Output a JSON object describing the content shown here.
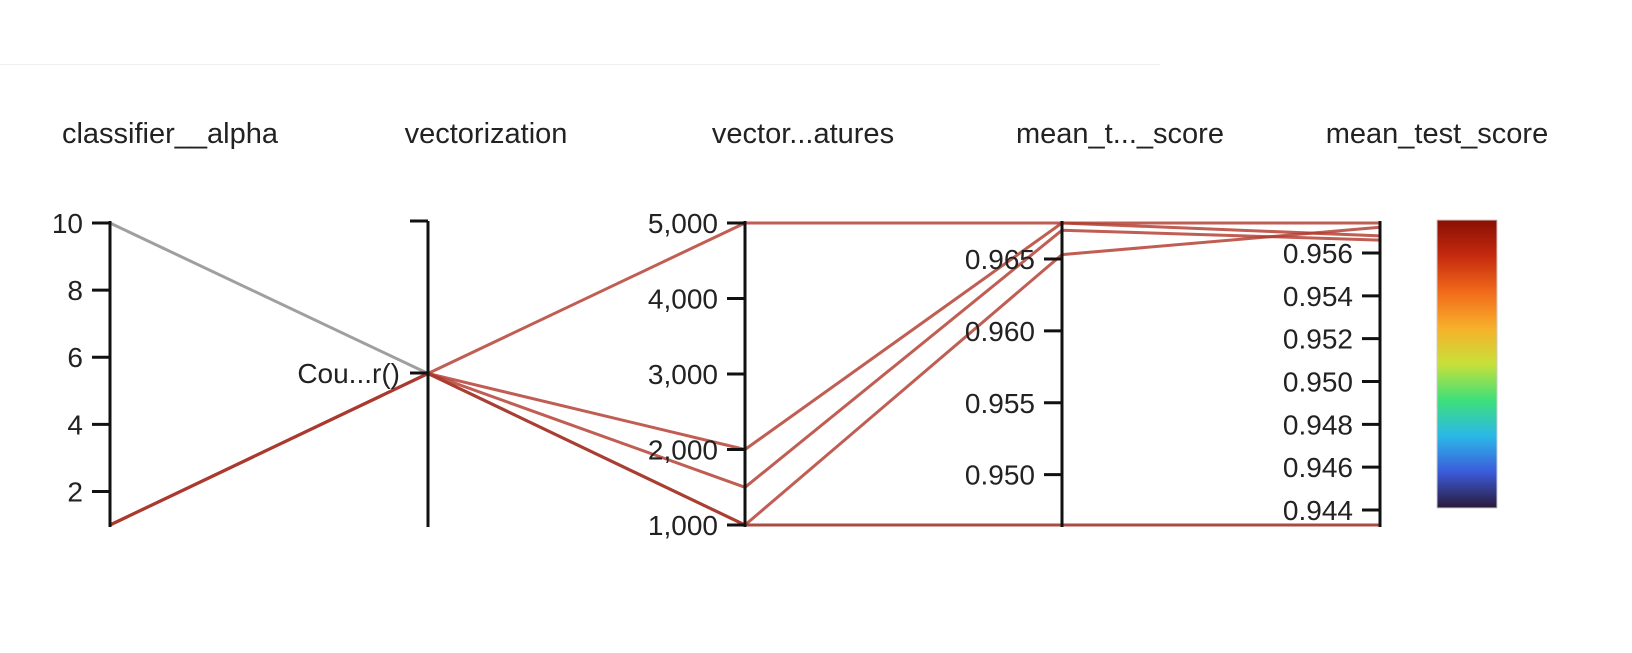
{
  "chart_data": {
    "type": "parallel_coordinates",
    "dimensions": [
      {
        "key": "classifier__alpha",
        "label": "classifier__alpha",
        "range": [
          1,
          10
        ],
        "ticks": [
          10,
          8,
          6,
          4,
          2
        ],
        "tick_labels": [
          "10",
          "8",
          "6",
          "4",
          "2"
        ]
      },
      {
        "key": "vectorization",
        "label": "vectorization",
        "categorical": true,
        "categories": [
          "Cou...r()"
        ]
      },
      {
        "key": "vectorization__max_features",
        "label": "vector...atures",
        "range": [
          1000,
          5000
        ],
        "ticks": [
          5000,
          4000,
          3000,
          2000,
          1000
        ],
        "tick_labels": [
          "5,000",
          "4,000",
          "3,000",
          "2,000",
          "1,000"
        ]
      },
      {
        "key": "mean_train_score",
        "label": "mean_t..._score",
        "range": [
          0.9465,
          0.9675
        ],
        "ticks": [
          0.965,
          0.96,
          0.955,
          0.95
        ],
        "tick_labels": [
          "0.965",
          "0.960",
          "0.955",
          "0.950"
        ]
      },
      {
        "key": "mean_test_score",
        "label": "mean_test_score",
        "range": [
          0.9433,
          0.9574
        ],
        "ticks": [
          0.956,
          0.954,
          0.952,
          0.95,
          0.948,
          0.946,
          0.944
        ],
        "tick_labels": [
          "0.956",
          "0.954",
          "0.952",
          "0.950",
          "0.948",
          "0.946",
          "0.944"
        ]
      }
    ],
    "lines": [
      {
        "values": [
          10,
          "Cou...r()",
          1000,
          0.9465,
          0.9433
        ],
        "color": "#8a8a8a"
      },
      {
        "values": [
          1,
          "Cou...r()",
          5000,
          0.9675,
          0.9574
        ],
        "color": "#b23a2e"
      },
      {
        "values": [
          1,
          "Cou...r()",
          2000,
          0.9675,
          0.9568
        ],
        "color": "#b23a2e"
      },
      {
        "values": [
          1,
          "Cou...r()",
          1500,
          0.967,
          0.9566
        ],
        "color": "#b23a2e"
      },
      {
        "values": [
          1,
          "Cou...r()",
          1000,
          0.9653,
          0.9572
        ],
        "color": "#b23a2e"
      },
      {
        "values": [
          1,
          "Cou...r()",
          1000,
          0.9465,
          0.9433
        ],
        "color": "#a83a30"
      }
    ],
    "colorbar": {
      "range": [
        0.9433,
        0.9574
      ],
      "stops": [
        "#2a1a3a",
        "#3b5bdb",
        "#2bb8e8",
        "#3ee07a",
        "#c8e03a",
        "#f7b02a",
        "#f26a1a",
        "#c52a0e",
        "#8a0f05"
      ]
    }
  }
}
